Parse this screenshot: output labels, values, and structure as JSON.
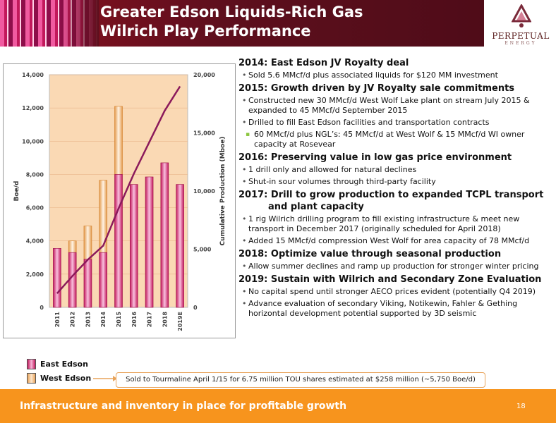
{
  "header": {
    "title_line1": "Greater Edson Liquids-Rich Gas",
    "title_line2": "Wilrich Play Performance",
    "logo_text": "PERPETUAL",
    "logo_sub": "ENERGY"
  },
  "chart_data": {
    "type": "bar",
    "categories": [
      "2011",
      "2012",
      "2013",
      "2014",
      "2015",
      "2016",
      "2017",
      "2018",
      "2019E"
    ],
    "series": [
      {
        "name": "East Edson",
        "values": [
          3550,
          3300,
          2900,
          3300,
          8000,
          7400,
          7850,
          8700,
          7400
        ]
      },
      {
        "name": "West Edson",
        "values": [
          0,
          700,
          2000,
          4350,
          4100,
          0,
          0,
          0,
          0
        ]
      }
    ],
    "line_series": {
      "axis": "right",
      "values": [
        1200,
        2700,
        4100,
        5300,
        8500,
        11500,
        14200,
        16900,
        19000
      ]
    },
    "ylabel": "Boe/d",
    "y2label": "Cumulative Production (Mboe)",
    "ylim": [
      0,
      14000
    ],
    "y2lim": [
      0,
      20000
    ],
    "yticks": [
      "0",
      "2,000",
      "4,000",
      "6,000",
      "8,000",
      "10,000",
      "12,000",
      "14,000"
    ],
    "y2ticks": [
      "0",
      "5,000",
      "10,000",
      "15,000",
      "20,000"
    ],
    "colors": {
      "east": "#c2185b",
      "west": "#e8a35a",
      "line": "#8b1a5b",
      "plot_bg": "#fad9b4"
    }
  },
  "sections": [
    {
      "heading": "2014: East Edson JV Royalty deal",
      "bullets": [
        {
          "text": "Sold 5.6 MMcf/d plus associated liquids for $120 MM investment"
        }
      ]
    },
    {
      "heading": "2015: Growth driven by JV Royalty sale commitments",
      "bullets": [
        {
          "text": "Constructed new 30 MMcf/d West Wolf Lake plant on stream July 2015 & expanded to 45 MMcf/d September 2015"
        },
        {
          "text": "Drilled to fill East Edson facilities and transportation contracts"
        },
        {
          "text": "60 MMcf/d plus NGL’s: 45 MMcf/d at West Wolf & 15 MMcf/d WI owner capacity at Rosevear",
          "sub": true
        }
      ]
    },
    {
      "heading": "2016: Preserving value in low gas price environment",
      "bullets": [
        {
          "text": "1 drill only and allowed for natural declines"
        },
        {
          "text": "Shut-in sour volumes through third-party facility"
        }
      ]
    },
    {
      "heading": "2017: Drill to grow production to expanded TCPL transport",
      "heading2": "and plant capacity",
      "bullets": [
        {
          "text": "1 rig Wilrich drilling program to fill existing infrastructure & meet new transport in December 2017 (originally scheduled for April 2018)"
        },
        {
          "text": "Added 15 MMcf/d compression West Wolf for area capacity of 78 MMcf/d"
        }
      ]
    },
    {
      "heading": "2018: Optimize value through seasonal production",
      "bullets": [
        {
          "text": "Allow summer declines and ramp up production for stronger winter pricing"
        }
      ]
    },
    {
      "heading": "2019: Sustain with Wilrich and Secondary Zone Evaluation",
      "bullets": [
        {
          "text": "No capital spend until stronger AECO prices evident (potentially Q4 2019)"
        },
        {
          "text": "Advance evaluation of secondary Viking, Notikewin, Fahler & Gething horizontal development potential supported by 3D seismic"
        }
      ]
    }
  ],
  "legend": {
    "east": "East Edson",
    "west": "West Edson"
  },
  "callout": "Sold to Tourmaline April 1/15 for 6.75 million TOU shares estimated at $258 million (~5,750 Boe/d)",
  "footer": {
    "text": "Infrastructure and inventory in place for profitable growth",
    "page": "18"
  }
}
